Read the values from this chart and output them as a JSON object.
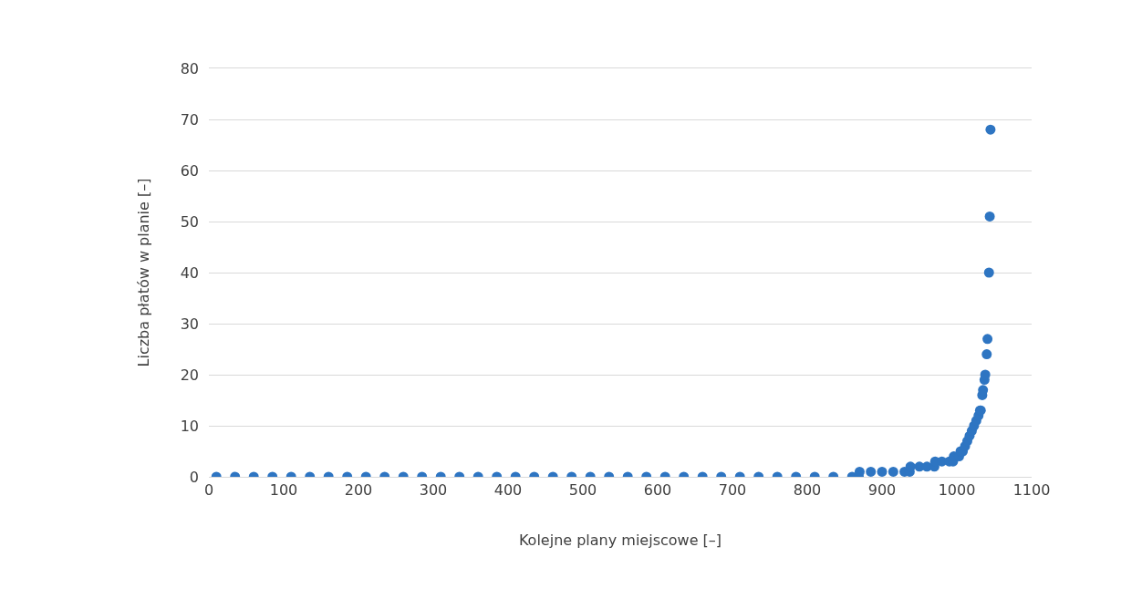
{
  "chart_data": {
    "type": "scatter",
    "xlabel": "Kolejne plany miejscowe [–]",
    "ylabel": "Liczba płatów w planie [–]",
    "x": [
      10,
      35,
      60,
      85,
      110,
      135,
      160,
      185,
      210,
      235,
      260,
      285,
      310,
      335,
      360,
      385,
      410,
      435,
      460,
      485,
      510,
      535,
      560,
      585,
      610,
      635,
      660,
      685,
      710,
      735,
      760,
      785,
      810,
      835,
      860,
      869,
      870,
      885,
      900,
      915,
      930,
      937,
      938,
      950,
      960,
      970,
      971,
      980,
      990,
      995,
      996,
      1003,
      1005,
      1008,
      1011,
      1014,
      1017,
      1020,
      1023,
      1026,
      1029,
      1031,
      1032,
      1034,
      1035,
      1037,
      1038,
      1040,
      1041,
      1043,
      1044,
      1045
    ],
    "values": [
      0,
      0,
      0,
      0,
      0,
      0,
      0,
      0,
      0,
      0,
      0,
      0,
      0,
      0,
      0,
      0,
      0,
      0,
      0,
      0,
      0,
      0,
      0,
      0,
      0,
      0,
      0,
      0,
      0,
      0,
      0,
      0,
      0,
      0,
      0,
      0,
      1,
      1,
      1,
      1,
      1,
      1,
      2,
      2,
      2,
      2,
      3,
      3,
      3,
      3,
      4,
      4,
      5,
      5,
      6,
      7,
      8,
      9,
      10,
      11,
      12,
      13,
      13,
      16,
      17,
      19,
      20,
      24,
      27,
      40,
      51,
      68
    ],
    "color": "#2e75c2",
    "marker": "circle",
    "xlim": [
      0,
      1100
    ],
    "xticks": [
      0,
      100,
      200,
      300,
      400,
      500,
      600,
      700,
      800,
      900,
      1000,
      1100
    ],
    "ylim": [
      0,
      80
    ],
    "yticks": [
      0,
      10,
      20,
      30,
      40,
      50,
      60,
      70,
      80
    ],
    "grid": "y"
  }
}
